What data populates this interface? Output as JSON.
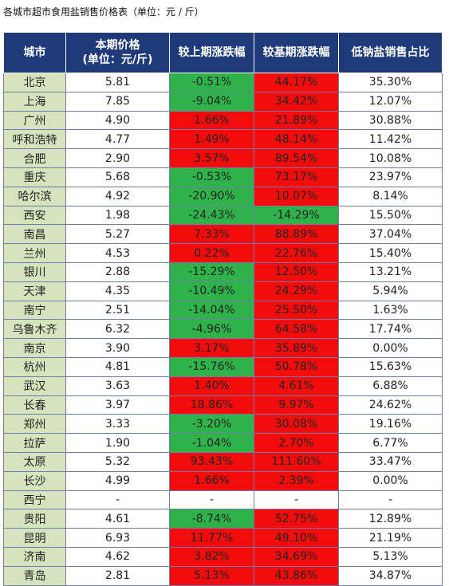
{
  "title": "各城市超市食用盐销售价格表（单位：元 / 斤）",
  "headers": {
    "city": "城市",
    "price_line1": "本期价格",
    "price_line2": "(单位：元/斤)",
    "prev_change": "较上期涨跌幅",
    "base_change": "较基期涨跌幅",
    "low_sodium": "低钠盐销售占比"
  },
  "colors": {
    "header_bg": "#1f3a78",
    "city_bg": "#d6e4bd",
    "up": "#f40c0c",
    "down": "#2fb24a"
  },
  "rows": [
    {
      "city": "北京",
      "price": "5.81",
      "prev": "-0.51%",
      "prev_dir": "down",
      "base": "44.17%",
      "base_dir": "up",
      "low": "35.30%"
    },
    {
      "city": "上海",
      "price": "7.85",
      "prev": "-9.04%",
      "prev_dir": "down",
      "base": "34.42%",
      "base_dir": "up",
      "low": "12.07%"
    },
    {
      "city": "广州",
      "price": "4.90",
      "prev": "1.66%",
      "prev_dir": "up",
      "base": "21.89%",
      "base_dir": "up",
      "low": "30.88%"
    },
    {
      "city": "呼和浩特",
      "price": "4.77",
      "prev": "1.49%",
      "prev_dir": "up",
      "base": "48.14%",
      "base_dir": "up",
      "low": "11.42%"
    },
    {
      "city": "合肥",
      "price": "2.90",
      "prev": "3.57%",
      "prev_dir": "up",
      "base": "89.54%",
      "base_dir": "up",
      "low": "10.08%"
    },
    {
      "city": "重庆",
      "price": "5.68",
      "prev": "-0.53%",
      "prev_dir": "down",
      "base": "73.17%",
      "base_dir": "up",
      "low": "23.97%"
    },
    {
      "city": "哈尔滨",
      "price": "4.92",
      "prev": "-20.90%",
      "prev_dir": "down",
      "base": "10.07%",
      "base_dir": "up",
      "low": "8.14%"
    },
    {
      "city": "西安",
      "price": "1.98",
      "prev": "-24.43%",
      "prev_dir": "down",
      "base": "-14.29%",
      "base_dir": "down",
      "low": "15.50%"
    },
    {
      "city": "南昌",
      "price": "5.27",
      "prev": "7.33%",
      "prev_dir": "up",
      "base": "88.89%",
      "base_dir": "up",
      "low": "37.04%"
    },
    {
      "city": "兰州",
      "price": "4.53",
      "prev": "0.22%",
      "prev_dir": "up",
      "base": "22.76%",
      "base_dir": "up",
      "low": "15.40%"
    },
    {
      "city": "银川",
      "price": "2.88",
      "prev": "-15.29%",
      "prev_dir": "down",
      "base": "12.50%",
      "base_dir": "up",
      "low": "13.21%"
    },
    {
      "city": "天津",
      "price": "4.35",
      "prev": "-10.49%",
      "prev_dir": "down",
      "base": "24.29%",
      "base_dir": "up",
      "low": "5.94%"
    },
    {
      "city": "南宁",
      "price": "2.51",
      "prev": "-14.04%",
      "prev_dir": "down",
      "base": "25.50%",
      "base_dir": "up",
      "low": "1.63%"
    },
    {
      "city": "乌鲁木齐",
      "price": "6.32",
      "prev": "-4.96%",
      "prev_dir": "down",
      "base": "64.58%",
      "base_dir": "up",
      "low": "17.74%"
    },
    {
      "city": "南京",
      "price": "3.90",
      "prev": "3.17%",
      "prev_dir": "up",
      "base": "35.89%",
      "base_dir": "up",
      "low": "0.00%"
    },
    {
      "city": "杭州",
      "price": "4.81",
      "prev": "-15.76%",
      "prev_dir": "down",
      "base": "50.78%",
      "base_dir": "up",
      "low": "15.63%"
    },
    {
      "city": "武汉",
      "price": "3.63",
      "prev": "1.40%",
      "prev_dir": "up",
      "base": "4.61%",
      "base_dir": "up",
      "low": "6.88%"
    },
    {
      "city": "长春",
      "price": "3.97",
      "prev": "18.86%",
      "prev_dir": "up",
      "base": "9.97%",
      "base_dir": "up",
      "low": "24.62%"
    },
    {
      "city": "郑州",
      "price": "3.33",
      "prev": "-3.20%",
      "prev_dir": "down",
      "base": "30.08%",
      "base_dir": "up",
      "low": "19.16%"
    },
    {
      "city": "拉萨",
      "price": "1.90",
      "prev": "-1.04%",
      "prev_dir": "down",
      "base": "2.70%",
      "base_dir": "up",
      "low": "6.77%"
    },
    {
      "city": "太原",
      "price": "5.32",
      "prev": "93.43%",
      "prev_dir": "up",
      "base": "111.60%",
      "base_dir": "up",
      "low": "33.47%"
    },
    {
      "city": "长沙",
      "price": "4.99",
      "prev": "1.66%",
      "prev_dir": "up",
      "base": "2.39%",
      "base_dir": "up",
      "low": "0.00%"
    },
    {
      "city": "西宁",
      "price": "-",
      "prev": "-",
      "prev_dir": "none",
      "base": "-",
      "base_dir": "none",
      "low": "-"
    },
    {
      "city": "贵阳",
      "price": "4.61",
      "prev": "-8.74%",
      "prev_dir": "down",
      "base": "52.75%",
      "base_dir": "up",
      "low": "12.89%"
    },
    {
      "city": "昆明",
      "price": "6.93",
      "prev": "11.77%",
      "prev_dir": "up",
      "base": "49.10%",
      "base_dir": "up",
      "low": "21.19%"
    },
    {
      "city": "济南",
      "price": "4.62",
      "prev": "3.82%",
      "prev_dir": "up",
      "base": "34.69%",
      "base_dir": "up",
      "low": "5.13%"
    },
    {
      "city": "青岛",
      "price": "2.81",
      "prev": "5.13%",
      "prev_dir": "up",
      "base": "43.86%",
      "base_dir": "up",
      "low": "34.87%"
    }
  ]
}
